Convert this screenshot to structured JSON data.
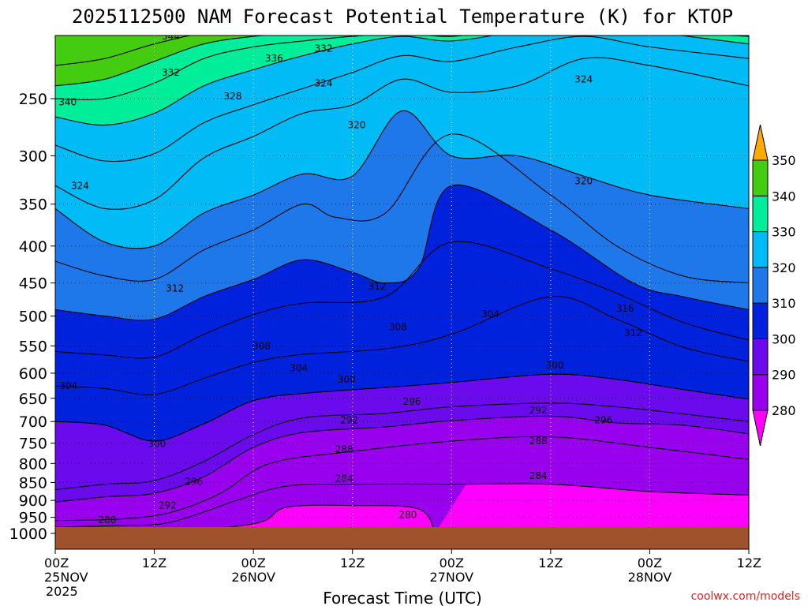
{
  "chart_data": {
    "type": "heatmap",
    "title": "2025112500 NAM Forecast Potential Temperature (K) for KTOP",
    "xlabel": "Forecast Time (UTC)",
    "ylabel": "",
    "credit": "coolwx.com/models",
    "x_ticks": [
      {
        "hours": 0,
        "label": "00Z",
        "sub": "25NOV",
        "year": "2025"
      },
      {
        "hours": 12,
        "label": "12Z",
        "sub": "",
        "year": ""
      },
      {
        "hours": 24,
        "label": "00Z",
        "sub": "26NOV",
        "year": ""
      },
      {
        "hours": 36,
        "label": "12Z",
        "sub": "",
        "year": ""
      },
      {
        "hours": 48,
        "label": "00Z",
        "sub": "27NOV",
        "year": ""
      },
      {
        "hours": 60,
        "label": "12Z",
        "sub": "",
        "year": ""
      },
      {
        "hours": 72,
        "label": "00Z",
        "sub": "28NOV",
        "year": ""
      },
      {
        "hours": 84,
        "label": "12Z",
        "sub": "",
        "year": ""
      }
    ],
    "y_ticks": [
      250,
      300,
      350,
      400,
      450,
      500,
      550,
      600,
      650,
      700,
      750,
      800,
      850,
      900,
      950,
      1000
    ],
    "xlim": [
      0,
      84
    ],
    "ylim_hpa": [
      1000,
      200
    ],
    "colorbar": {
      "labels": [
        280,
        290,
        300,
        310,
        320,
        330,
        340,
        350
      ],
      "bands": [
        {
          "range": "<280",
          "color": "#ff00ff"
        },
        {
          "range": "280-290",
          "color": "#9900ee"
        },
        {
          "range": "290-300",
          "color": "#6a0aed"
        },
        {
          "range": "300-310",
          "color": "#0022dd"
        },
        {
          "range": "310-320",
          "color": "#1f78ea"
        },
        {
          "range": "320-330",
          "color": "#00bbf5"
        },
        {
          "range": "330-340",
          "color": "#00ee99"
        },
        {
          "range": "340-350",
          "color": "#44cc11"
        },
        {
          "range": ">350",
          "color": "#ffff33"
        }
      ]
    },
    "isotherms_K": [
      {
        "value": 280,
        "points": [
          [
            0,
            1000
          ],
          [
            10,
            1000
          ],
          [
            24,
            970
          ],
          [
            28,
            920
          ],
          [
            36,
            915
          ],
          [
            44,
            925
          ],
          [
            46,
            1000
          ]
        ]
      },
      {
        "value": 284,
        "points": [
          [
            0,
            980
          ],
          [
            8,
            975
          ],
          [
            14,
            965
          ],
          [
            22,
            900
          ],
          [
            28,
            860
          ],
          [
            36,
            855
          ],
          [
            48,
            855
          ],
          [
            60,
            855
          ],
          [
            72,
            875
          ],
          [
            84,
            885
          ]
        ]
      },
      {
        "value": 288,
        "points": [
          [
            0,
            960
          ],
          [
            8,
            955
          ],
          [
            14,
            935
          ],
          [
            20,
            880
          ],
          [
            26,
            800
          ],
          [
            36,
            770
          ],
          [
            48,
            745
          ],
          [
            60,
            735
          ],
          [
            72,
            760
          ],
          [
            84,
            790
          ]
        ]
      },
      {
        "value": 292,
        "points": [
          [
            0,
            905
          ],
          [
            6,
            890
          ],
          [
            12,
            880
          ],
          [
            18,
            835
          ],
          [
            24,
            760
          ],
          [
            30,
            725
          ],
          [
            40,
            712
          ],
          [
            48,
            698
          ],
          [
            60,
            688
          ],
          [
            68,
            703
          ],
          [
            76,
            708
          ],
          [
            84,
            728
          ]
        ]
      },
      {
        "value": 296,
        "points": [
          [
            0,
            870
          ],
          [
            6,
            855
          ],
          [
            12,
            845
          ],
          [
            18,
            795
          ],
          [
            24,
            730
          ],
          [
            30,
            692
          ],
          [
            40,
            682
          ],
          [
            48,
            668
          ],
          [
            60,
            660
          ],
          [
            68,
            668
          ],
          [
            76,
            683
          ],
          [
            84,
            700
          ]
        ]
      },
      {
        "value": 300,
        "points": [
          [
            0,
            700
          ],
          [
            6,
            708
          ],
          [
            12,
            745
          ],
          [
            18,
            705
          ],
          [
            24,
            655
          ],
          [
            30,
            640
          ],
          [
            40,
            628
          ],
          [
            48,
            618
          ],
          [
            60,
            602
          ],
          [
            68,
            612
          ],
          [
            76,
            632
          ],
          [
            84,
            652
          ]
        ]
      },
      {
        "value": 304,
        "points": [
          [
            0,
            625
          ],
          [
            6,
            630
          ],
          [
            12,
            642
          ],
          [
            18,
            610
          ],
          [
            24,
            580
          ],
          [
            30,
            565
          ],
          [
            40,
            555
          ],
          [
            48,
            530
          ],
          [
            60,
            470
          ],
          [
            68,
            505
          ],
          [
            76,
            552
          ],
          [
            84,
            578
          ]
        ]
      },
      {
        "value": 308,
        "points": [
          [
            0,
            560
          ],
          [
            6,
            566
          ],
          [
            12,
            570
          ],
          [
            18,
            530
          ],
          [
            24,
            498
          ],
          [
            30,
            480
          ],
          [
            40,
            470
          ],
          [
            48,
            395
          ],
          [
            60,
            430
          ],
          [
            68,
            465
          ],
          [
            76,
            510
          ],
          [
            84,
            540
          ]
        ]
      },
      {
        "value": 312,
        "points": [
          [
            0,
            490
          ],
          [
            6,
            500
          ],
          [
            12,
            505
          ],
          [
            18,
            470
          ],
          [
            24,
            445
          ],
          [
            30,
            418
          ],
          [
            36,
            435
          ],
          [
            40,
            450
          ],
          [
            44,
            430
          ],
          [
            48,
            330
          ],
          [
            60,
            380
          ],
          [
            70,
            450
          ],
          [
            76,
            470
          ],
          [
            84,
            490
          ]
        ]
      },
      {
        "value": 316,
        "points": [
          [
            0,
            420
          ],
          [
            6,
            440
          ],
          [
            12,
            445
          ],
          [
            18,
            405
          ],
          [
            24,
            380
          ],
          [
            30,
            350
          ],
          [
            34,
            365
          ],
          [
            40,
            360
          ],
          [
            48,
            280
          ],
          [
            60,
            340
          ],
          [
            68,
            400
          ],
          [
            76,
            440
          ],
          [
            84,
            450
          ]
        ]
      },
      {
        "value": 320,
        "points": [
          [
            0,
            355
          ],
          [
            6,
            395
          ],
          [
            12,
            400
          ],
          [
            18,
            360
          ],
          [
            24,
            340
          ],
          [
            30,
            318
          ],
          [
            36,
            320
          ],
          [
            42,
            260
          ],
          [
            48,
            300
          ],
          [
            56,
            300
          ],
          [
            64,
            320
          ],
          [
            72,
            340
          ],
          [
            84,
            355
          ]
        ]
      },
      {
        "value": 324,
        "points": [
          [
            0,
            330
          ],
          [
            6,
            355
          ],
          [
            12,
            345
          ],
          [
            18,
            302
          ],
          [
            24,
            282
          ],
          [
            30,
            262
          ],
          [
            36,
            255
          ],
          [
            42,
            235
          ],
          [
            48,
            245
          ],
          [
            56,
            240
          ],
          [
            64,
            220
          ],
          [
            72,
            225
          ],
          [
            84,
            240
          ]
        ]
      },
      {
        "value": 328,
        "points": [
          [
            0,
            290
          ],
          [
            6,
            305
          ],
          [
            12,
            298
          ],
          [
            18,
            270
          ],
          [
            24,
            255
          ],
          [
            30,
            242
          ],
          [
            36,
            230
          ],
          [
            42,
            218
          ],
          [
            48,
            222
          ],
          [
            56,
            212
          ],
          [
            64,
            205
          ],
          [
            72,
            212
          ],
          [
            84,
            220
          ]
        ]
      },
      {
        "value": 332,
        "points": [
          [
            0,
            265
          ],
          [
            6,
            272
          ],
          [
            12,
            262
          ],
          [
            18,
            240
          ],
          [
            24,
            228
          ],
          [
            30,
            218
          ],
          [
            36,
            210
          ],
          [
            42,
            205
          ],
          [
            48,
            208
          ],
          [
            56,
            202
          ],
          [
            64,
            198
          ],
          [
            72,
            202
          ],
          [
            84,
            210
          ]
        ]
      },
      {
        "value": 336,
        "points": [
          [
            0,
            250
          ],
          [
            6,
            250
          ],
          [
            12,
            238
          ],
          [
            18,
            220
          ],
          [
            24,
            212
          ],
          [
            30,
            208
          ],
          [
            36,
            205
          ],
          [
            42,
            203
          ],
          [
            48,
            205
          ],
          [
            56,
            200
          ],
          [
            64,
            200
          ],
          [
            84,
            205
          ]
        ]
      },
      {
        "value": 340,
        "points": [
          [
            0,
            240
          ],
          [
            6,
            235
          ],
          [
            12,
            222
          ],
          [
            18,
            210
          ],
          [
            24,
            205
          ],
          [
            30,
            203
          ],
          [
            36,
            202
          ],
          [
            84,
            202
          ]
        ]
      },
      {
        "value": 344,
        "points": [
          [
            0,
            225
          ],
          [
            6,
            220
          ],
          [
            12,
            210
          ],
          [
            18,
            203
          ],
          [
            24,
            202
          ],
          [
            84,
            201
          ]
        ]
      }
    ],
    "contour_labels": [
      {
        "text": "344",
        "hours": 14,
        "hpa": 205
      },
      {
        "text": "340",
        "hours": 1.5,
        "hpa": 253
      },
      {
        "text": "336",
        "hours": 26.5,
        "hpa": 220
      },
      {
        "text": "332",
        "hours": 14,
        "hpa": 230
      },
      {
        "text": "332",
        "hours": 32.5,
        "hpa": 213
      },
      {
        "text": "328",
        "hours": 21.5,
        "hpa": 248
      },
      {
        "text": "324",
        "hours": 32.5,
        "hpa": 238
      },
      {
        "text": "324",
        "hours": 3,
        "hpa": 330
      },
      {
        "text": "324",
        "hours": 64,
        "hpa": 235
      },
      {
        "text": "320",
        "hours": 36.5,
        "hpa": 272
      },
      {
        "text": "320",
        "hours": 64,
        "hpa": 325
      },
      {
        "text": "316",
        "hours": 69,
        "hpa": 488
      },
      {
        "text": "312",
        "hours": 14.5,
        "hpa": 458
      },
      {
        "text": "312",
        "hours": 39,
        "hpa": 455
      },
      {
        "text": "312",
        "hours": 70,
        "hpa": 528
      },
      {
        "text": "308",
        "hours": 25,
        "hpa": 550
      },
      {
        "text": "308",
        "hours": 41.5,
        "hpa": 518
      },
      {
        "text": "304",
        "hours": 1.6,
        "hpa": 625
      },
      {
        "text": "304",
        "hours": 29.5,
        "hpa": 590
      },
      {
        "text": "304",
        "hours": 52.7,
        "hpa": 497
      },
      {
        "text": "300",
        "hours": 35.3,
        "hpa": 612
      },
      {
        "text": "300",
        "hours": 60.5,
        "hpa": 585
      },
      {
        "text": "300",
        "hours": 12.3,
        "hpa": 752
      },
      {
        "text": "296",
        "hours": 43.2,
        "hpa": 657
      },
      {
        "text": "296",
        "hours": 66.4,
        "hpa": 697
      },
      {
        "text": "296",
        "hours": 16.8,
        "hpa": 848
      },
      {
        "text": "292",
        "hours": 35.6,
        "hpa": 697
      },
      {
        "text": "292",
        "hours": 58.5,
        "hpa": 675
      },
      {
        "text": "292",
        "hours": 13.6,
        "hpa": 915
      },
      {
        "text": "288",
        "hours": 35,
        "hpa": 765
      },
      {
        "text": "288",
        "hours": 58.5,
        "hpa": 745
      },
      {
        "text": "288",
        "hours": 6.3,
        "hpa": 958
      },
      {
        "text": "284",
        "hours": 35,
        "hpa": 840
      },
      {
        "text": "284",
        "hours": 58.5,
        "hpa": 832
      },
      {
        "text": "280",
        "hours": 42.7,
        "hpa": 943
      }
    ]
  }
}
